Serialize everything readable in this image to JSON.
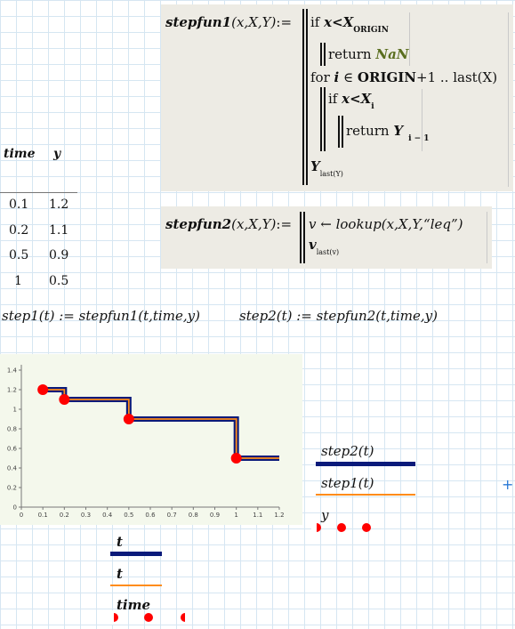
{
  "table": {
    "headers": [
      "time",
      "y"
    ],
    "rows": [
      [
        "0.1",
        "1.2"
      ],
      [
        "0.2",
        "1.1"
      ],
      [
        "0.5",
        "0.9"
      ],
      [
        "1",
        "0.5"
      ]
    ]
  },
  "fun1": {
    "name": "stepfun1",
    "args": "(x,X,Y)",
    "define": ":=",
    "line1_kw": "if",
    "line1_cond": "x<X",
    "line1_sub": "ORIGIN",
    "line2_kw": "return",
    "line2_val": "NaN",
    "line3_kw": "for",
    "line3_var": "i",
    "line3_in": "∈",
    "line3_origin": "ORIGIN",
    "line3_rest": "+1 .. last(X)",
    "line4_kw": "if",
    "line4_cond": "x<X",
    "line4_sub": "i",
    "line5_kw": "return",
    "line5_val": "Y",
    "line5_sub": "i − 1",
    "line6_val": "Y",
    "line6_sub": "last(Y)"
  },
  "fun2": {
    "name": "stepfun2",
    "args": "(x,X,Y)",
    "define": ":=",
    "line1": "v ← lookup(x,X,Y,“leq”)",
    "line2_val": "v",
    "line2_sub": "last(v)"
  },
  "defs": {
    "step1": "step1(t) := stepfun1(t,time,y)",
    "step2": "step2(t) := stepfun2(t,time,y)"
  },
  "legend1": {
    "items": [
      {
        "label": "step2(t)",
        "color": "#0a1a7a"
      },
      {
        "label": "step1(t)",
        "color": "#ff8c1a"
      },
      {
        "label": "y",
        "color": "#ff0000"
      }
    ]
  },
  "legend2": {
    "items": [
      {
        "label": "t",
        "color": "#0a1a7a"
      },
      {
        "label": "t",
        "color": "#ff8c1a"
      },
      {
        "label": "time",
        "color": "#ff0000"
      }
    ]
  },
  "chart_data": {
    "type": "line",
    "x_ticks": [
      "0",
      "0.1",
      "0.2",
      "0.3",
      "0.4",
      "0.5",
      "0.6",
      "0.7",
      "0.8",
      "0.9",
      "1",
      "1.1",
      "1.2"
    ],
    "y_ticks": [
      "0",
      "0.2",
      "0.4",
      "0.6",
      "0.8",
      "1",
      "1.2",
      "1.4"
    ],
    "xlim": [
      0,
      1.2
    ],
    "ylim": [
      0,
      1.4
    ],
    "series": [
      {
        "name": "step2(t)",
        "style": "step",
        "x": [
          0.1,
          0.2,
          0.2,
          0.5,
          0.5,
          1,
          1,
          1.2
        ],
        "y": [
          1.2,
          1.2,
          1.1,
          1.1,
          0.9,
          0.9,
          0.5,
          0.5
        ],
        "color": "#0a1a7a"
      },
      {
        "name": "step1(t)",
        "style": "step",
        "x": [
          0.1,
          0.2,
          0.2,
          0.5,
          0.5,
          1,
          1,
          1.2
        ],
        "y": [
          1.2,
          1.2,
          1.1,
          1.1,
          0.9,
          0.9,
          0.5,
          0.5
        ],
        "color": "#ff8c1a"
      },
      {
        "name": "y",
        "style": "points",
        "x": [
          0.1,
          0.2,
          0.5,
          1
        ],
        "y": [
          1.2,
          1.1,
          0.9,
          0.5
        ],
        "color": "#ff0000"
      }
    ]
  }
}
